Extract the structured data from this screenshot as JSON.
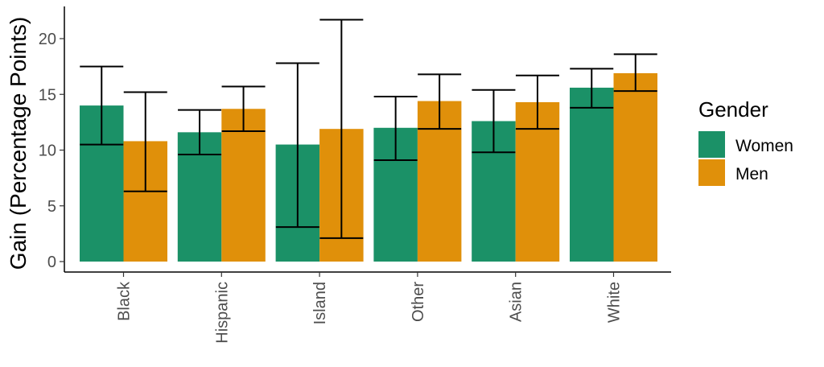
{
  "chart_data": {
    "type": "bar",
    "ylabel": "Gain (Percentage Points)",
    "xlabel": "",
    "ylim": [
      0,
      22.5
    ],
    "yticks": [
      0,
      5,
      10,
      15,
      20
    ],
    "categories": [
      "Black",
      "Hispanic",
      "Island",
      "Other",
      "Asian",
      "White"
    ],
    "legend": {
      "title": "Gender",
      "position": "right"
    },
    "series": [
      {
        "name": "Women",
        "color": "#1b9167",
        "values": [
          14.0,
          11.6,
          10.5,
          12.0,
          12.6,
          15.6
        ],
        "error_low": [
          10.5,
          9.6,
          3.1,
          9.1,
          9.8,
          13.8
        ],
        "error_high": [
          17.5,
          13.6,
          17.8,
          14.8,
          15.4,
          17.3
        ]
      },
      {
        "name": "Men",
        "color": "#e0900a",
        "values": [
          10.8,
          13.7,
          11.9,
          14.4,
          14.3,
          16.9
        ],
        "error_low": [
          6.3,
          11.7,
          2.1,
          11.9,
          11.9,
          15.3
        ],
        "error_high": [
          15.2,
          15.7,
          21.7,
          16.8,
          16.7,
          18.6
        ]
      }
    ],
    "grid": false
  }
}
